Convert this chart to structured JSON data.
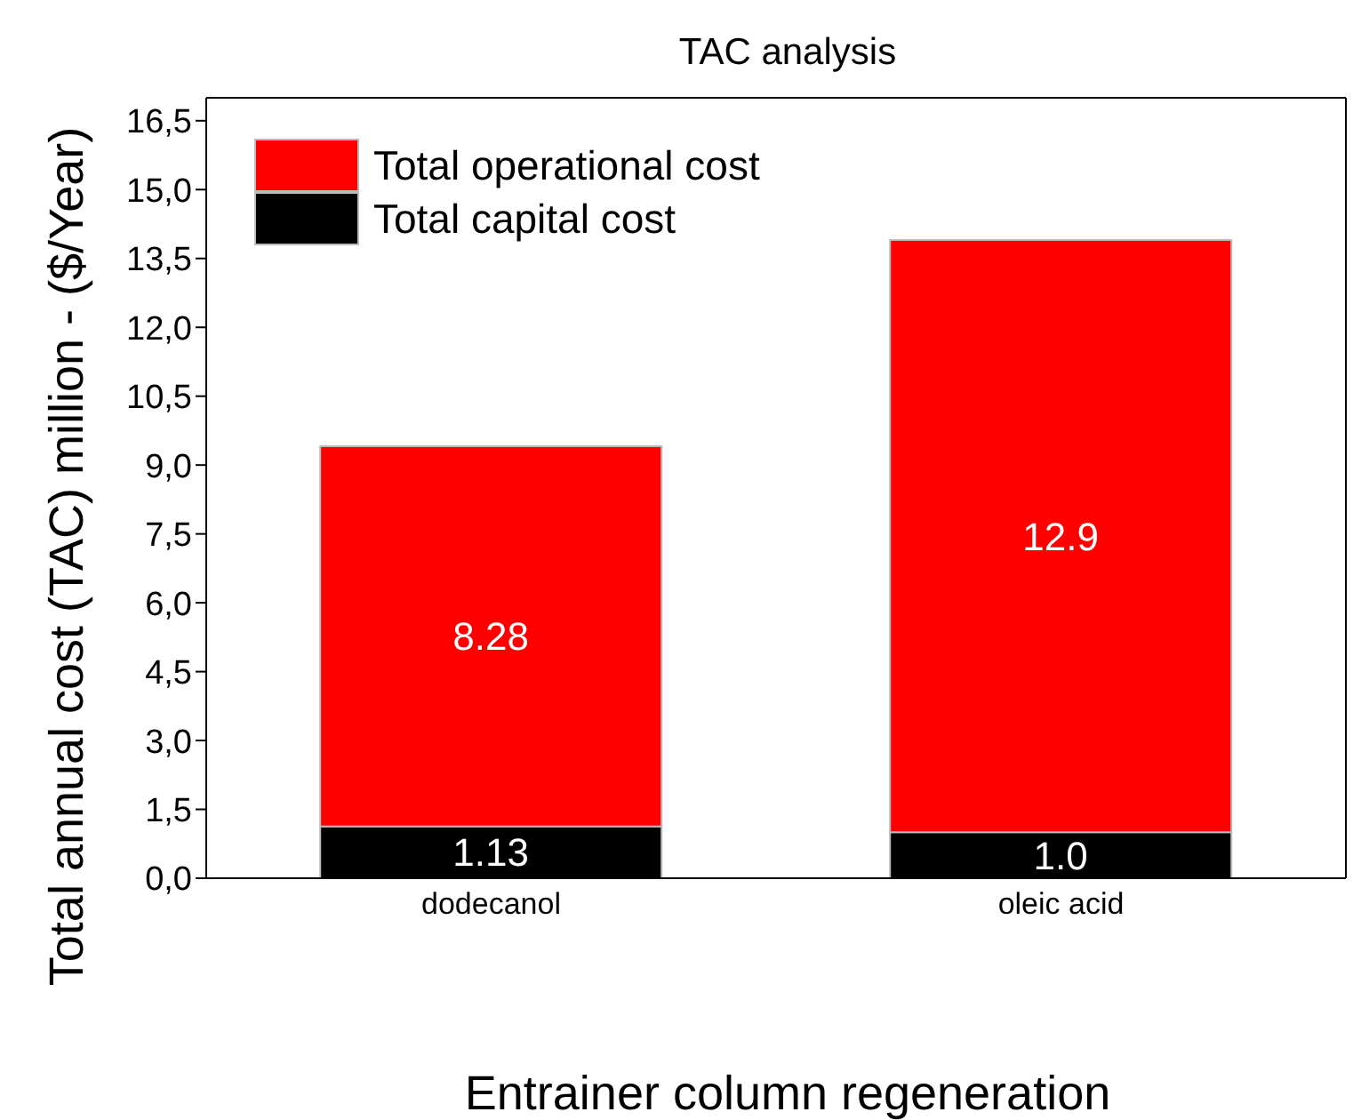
{
  "chart_data": {
    "type": "bar",
    "title": "TAC analysis",
    "xlabel": "Entrainer column regeneration",
    "ylabel": "Total annual cost (TAC) million - ($/Year)",
    "categories": [
      "dodecanol",
      "oleic acid"
    ],
    "stacked": true,
    "series": [
      {
        "name": "Total capital cost",
        "color": "#000000",
        "values": [
          1.13,
          1.0
        ],
        "value_labels": [
          "1.13",
          "1.0"
        ]
      },
      {
        "name": "Total operational cost",
        "color": "#ff0000",
        "values": [
          8.28,
          12.9
        ],
        "value_labels": [
          "8.28",
          "12.9"
        ]
      }
    ],
    "ylim": [
      0,
      17
    ],
    "yticks": [
      {
        "value": 0,
        "label": "0,0"
      },
      {
        "value": 1.5,
        "label": "1,5"
      },
      {
        "value": 3,
        "label": "3,0"
      },
      {
        "value": 4.5,
        "label": "4,5"
      },
      {
        "value": 6,
        "label": "6,0"
      },
      {
        "value": 7.5,
        "label": "7,5"
      },
      {
        "value": 9,
        "label": "9,0"
      },
      {
        "value": 10.5,
        "label": "10,5"
      },
      {
        "value": 12,
        "label": "12,0"
      },
      {
        "value": 13.5,
        "label": "13,5"
      },
      {
        "value": 15,
        "label": "15,0"
      },
      {
        "value": 16.5,
        "label": "16,5"
      }
    ],
    "legend": "top left",
    "grid": false
  }
}
